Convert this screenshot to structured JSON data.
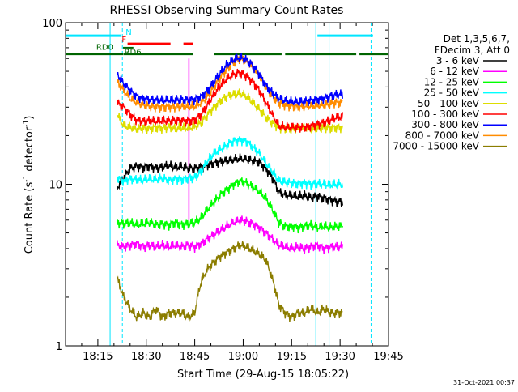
{
  "chart_data": {
    "type": "line",
    "title": "RHESSI Observing Summary Count Rates",
    "xlabel": "Start Time (29-Aug-15 18:05:22)",
    "ylabel_main": "Count Rate (s",
    "ylabel_sup": "-1",
    "ylabel_tail": " detector",
    "ylabel_end": ")",
    "yscale": "log",
    "ylim": [
      1,
      100
    ],
    "xlim_min": [
      0,
      100
    ],
    "y_ticks": [
      {
        "value": 1,
        "label": "1"
      },
      {
        "value": 10,
        "label": "10"
      },
      {
        "value": 100,
        "label": "100"
      }
    ],
    "x_ticks": [
      {
        "min": 10,
        "label": "18:15"
      },
      {
        "min": 25,
        "label": "18:30"
      },
      {
        "min": 40,
        "label": "18:45"
      },
      {
        "min": 55,
        "label": "19:00"
      },
      {
        "min": 70,
        "label": "19:15"
      },
      {
        "min": 85,
        "label": "19:30"
      },
      {
        "min": 100,
        "label": "19:45"
      }
    ],
    "legend_header": [
      "Det 1,3,5,6,7,",
      "FDecim 3, Att 0"
    ],
    "legend": [
      {
        "label": "3 - 6 keV",
        "color": "#000000"
      },
      {
        "label": "6 - 12 keV",
        "color": "#ff00ff"
      },
      {
        "label": "12 - 25 keV",
        "color": "#00ff00"
      },
      {
        "label": "25 - 50 keV",
        "color": "#00ffff"
      },
      {
        "label": "50 - 100 keV",
        "color": "#dddd00"
      },
      {
        "label": "100 - 300 keV",
        "color": "#ff0000"
      },
      {
        "label": "300 - 800 keV",
        "color": "#0000ff"
      },
      {
        "label": "800 - 7000 keV",
        "color": "#ff8c00"
      },
      {
        "label": "7000 - 15000 keV",
        "color": "#8b7d00"
      }
    ],
    "annotations": {
      "N": {
        "label": "N",
        "color": "#00e5ff"
      },
      "F": {
        "label": "F",
        "color": "#ff0000"
      },
      "RD0": {
        "label": "RD0",
        "color": "#006400"
      },
      "RD6": {
        "label": "RD6",
        "color": "#006400"
      }
    },
    "series": [
      {
        "color": "#8b7d00",
        "x": [
          16,
          18,
          20,
          22,
          24,
          26,
          28,
          30,
          32,
          34,
          36,
          38,
          40,
          42,
          44,
          46,
          48,
          50,
          52,
          54,
          56,
          58,
          60,
          62,
          64,
          66,
          68,
          70,
          72,
          74,
          76,
          78,
          80,
          82,
          84
        ],
        "y": [
          2.6,
          2.0,
          1.7,
          1.5,
          1.6,
          1.5,
          1.7,
          1.5,
          1.6,
          1.6,
          1.6,
          1.5,
          1.6,
          2.5,
          3.0,
          3.3,
          3.6,
          3.8,
          4.0,
          4.2,
          4.1,
          3.9,
          3.7,
          3.4,
          2.6,
          1.8,
          1.6,
          1.5,
          1.6,
          1.6,
          1.7,
          1.6,
          1.7,
          1.6,
          1.6
        ]
      },
      {
        "color": "#ff00ff",
        "x": [
          16,
          18,
          20,
          22,
          24,
          26,
          28,
          30,
          32,
          34,
          36,
          38,
          40,
          42,
          44,
          46,
          48,
          50,
          52,
          54,
          56,
          58,
          60,
          62,
          64,
          66,
          68,
          70,
          72,
          74,
          76,
          78,
          80,
          82,
          84
        ],
        "y": [
          4.2,
          4.1,
          4.2,
          4.3,
          4.1,
          4.2,
          4.1,
          4.2,
          4.1,
          4.2,
          4.1,
          4.2,
          4.1,
          4.3,
          4.6,
          4.9,
          5.2,
          5.5,
          5.8,
          6.0,
          5.9,
          5.7,
          5.4,
          5.0,
          4.6,
          4.2,
          4.1,
          4.0,
          4.1,
          4.0,
          4.1,
          4.2,
          4.0,
          4.1,
          4.1
        ]
      },
      {
        "color": "#00ff00",
        "x": [
          16,
          18,
          20,
          22,
          24,
          26,
          28,
          30,
          32,
          34,
          36,
          38,
          40,
          42,
          44,
          46,
          48,
          50,
          52,
          54,
          56,
          58,
          60,
          62,
          64,
          66,
          68,
          70,
          72,
          74,
          76,
          78,
          80,
          82,
          84
        ],
        "y": [
          5.8,
          5.7,
          5.8,
          5.6,
          5.7,
          5.8,
          5.6,
          5.7,
          5.6,
          5.8,
          5.6,
          5.7,
          5.8,
          6.2,
          7.0,
          7.8,
          8.6,
          9.3,
          10.0,
          10.5,
          10.2,
          9.6,
          9.0,
          8.2,
          7.0,
          5.8,
          5.5,
          5.5,
          5.4,
          5.5,
          5.6,
          5.4,
          5.5,
          5.4,
          5.5
        ]
      },
      {
        "color": "#000000",
        "x": [
          16,
          18,
          20,
          22,
          24,
          26,
          28,
          30,
          32,
          34,
          36,
          38,
          40,
          42,
          44,
          46,
          48,
          50,
          52,
          54,
          56,
          58,
          60,
          62,
          64,
          66,
          68,
          70,
          72,
          74,
          76,
          78,
          80,
          82,
          84
        ],
        "y": [
          9.5,
          11.0,
          12.5,
          13.0,
          12.7,
          13.0,
          12.6,
          12.8,
          13.1,
          12.7,
          12.9,
          12.6,
          12.5,
          12.8,
          13.2,
          13.5,
          13.8,
          14.0,
          14.2,
          14.4,
          14.3,
          14.0,
          13.7,
          12.5,
          11.0,
          9.0,
          8.6,
          8.5,
          8.4,
          8.5,
          8.3,
          8.4,
          8.2,
          8.0,
          7.8
        ]
      },
      {
        "color": "#00ffff",
        "x": [
          16,
          18,
          20,
          22,
          24,
          26,
          28,
          30,
          32,
          34,
          36,
          38,
          40,
          42,
          44,
          46,
          48,
          50,
          52,
          54,
          56,
          58,
          60,
          62,
          64,
          66,
          68,
          70,
          72,
          74,
          76,
          78,
          80,
          82,
          84
        ],
        "y": [
          11.0,
          10.5,
          10.8,
          10.7,
          10.6,
          10.8,
          10.7,
          10.9,
          10.6,
          10.8,
          10.7,
          10.9,
          11.0,
          12.0,
          14.0,
          15.5,
          16.5,
          17.5,
          18.5,
          18.8,
          18.5,
          17.0,
          15.5,
          13.5,
          12.0,
          10.5,
          10.3,
          10.2,
          10.1,
          10.2,
          10.0,
          10.1,
          10.0,
          9.9,
          10.0
        ]
      },
      {
        "color": "#dddd00",
        "x": [
          16,
          18,
          20,
          22,
          24,
          26,
          28,
          30,
          32,
          34,
          36,
          38,
          40,
          42,
          44,
          46,
          48,
          50,
          52,
          54,
          56,
          58,
          60,
          62,
          64,
          66,
          68,
          70,
          72,
          74,
          76,
          78,
          80,
          82,
          84
        ],
        "y": [
          27,
          23,
          22.5,
          22,
          22.3,
          22,
          22.5,
          22.2,
          22.6,
          22.1,
          22.4,
          22.3,
          22.8,
          24,
          27,
          30,
          33,
          35,
          36,
          36.5,
          35,
          32,
          29,
          26,
          24,
          22.5,
          22.2,
          22,
          22.1,
          22.3,
          22,
          22.2,
          22.4,
          22.3,
          22.5
        ]
      },
      {
        "color": "#ff0000",
        "x": [
          16,
          18,
          20,
          22,
          24,
          26,
          28,
          30,
          32,
          34,
          36,
          38,
          40,
          42,
          44,
          46,
          48,
          50,
          52,
          54,
          56,
          58,
          60,
          62,
          64,
          66,
          68,
          70,
          72,
          74,
          76,
          78,
          80,
          82,
          84
        ],
        "y": [
          32,
          30,
          27,
          25,
          24.5,
          24.7,
          24.5,
          24.8,
          24.6,
          24.9,
          24.7,
          24.6,
          25,
          27,
          31,
          36,
          41,
          45,
          48,
          49,
          47,
          43,
          38,
          32,
          27,
          23,
          22.5,
          22.6,
          22.4,
          22.6,
          23,
          23.5,
          24,
          25,
          26
        ]
      },
      {
        "color": "#ff8c00",
        "x": [
          16,
          18,
          20,
          22,
          24,
          26,
          28,
          30,
          32,
          34,
          36,
          38,
          40,
          42,
          44,
          46,
          48,
          50,
          52,
          54,
          56,
          58,
          60,
          62,
          64,
          66,
          68,
          70,
          72,
          74,
          76,
          78,
          80,
          82,
          84
        ],
        "y": [
          43,
          38,
          34,
          32,
          31,
          30.5,
          30.2,
          30,
          30.3,
          30.1,
          30.4,
          30.2,
          30.5,
          32,
          35,
          40,
          46,
          52,
          57,
          60,
          58,
          53,
          47,
          40,
          35,
          32,
          31,
          30.5,
          30.2,
          30.4,
          30.6,
          30.8,
          31,
          31.5,
          32
        ]
      },
      {
        "color": "#0000ff",
        "x": [
          16,
          18,
          20,
          22,
          24,
          26,
          28,
          30,
          32,
          34,
          36,
          38,
          40,
          42,
          44,
          46,
          48,
          50,
          52,
          54,
          56,
          58,
          60,
          62,
          64,
          66,
          68,
          70,
          72,
          74,
          76,
          78,
          80,
          82,
          84
        ],
        "y": [
          48,
          42,
          38,
          35,
          34,
          33.5,
          33.2,
          33,
          33.3,
          33.1,
          33.4,
          33.2,
          33.5,
          35,
          38,
          43,
          49,
          55,
          59,
          61,
          59,
          54,
          48,
          41,
          37,
          34,
          33,
          32.5,
          32.3,
          32.6,
          33,
          33.5,
          34,
          35,
          36
        ]
      }
    ]
  },
  "footer_timestamp": "31-Oct-2021 00:37"
}
